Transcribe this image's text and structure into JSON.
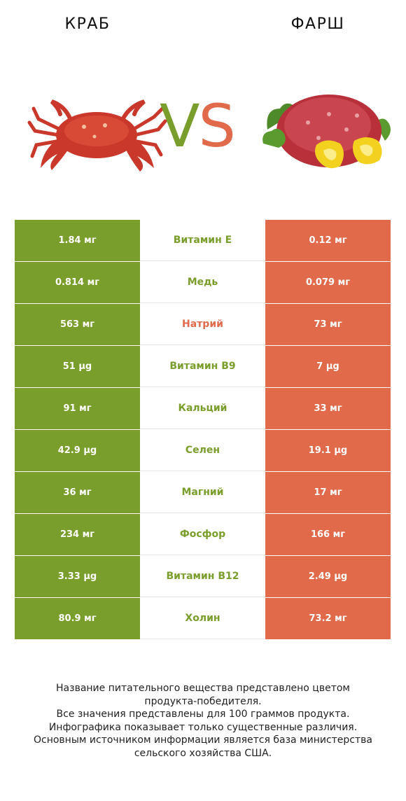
{
  "header": {
    "left_title": "КРАБ",
    "right_title": "ФАРШ"
  },
  "vs": {
    "v": "V",
    "s": "S"
  },
  "colors": {
    "green": "#7a9e2c",
    "red": "#e06a4a"
  },
  "rows": [
    {
      "left": "1.84 мг",
      "name": "Витамин E",
      "right": "0.12 мг",
      "winner": "green"
    },
    {
      "left": "0.814 мг",
      "name": "Медь",
      "right": "0.079 мг",
      "winner": "green"
    },
    {
      "left": "563 мг",
      "name": "Натрий",
      "right": "73 мг",
      "winner": "red"
    },
    {
      "left": "51 µg",
      "name": "Витамин B9",
      "right": "7 µg",
      "winner": "green"
    },
    {
      "left": "91 мг",
      "name": "Кальций",
      "right": "33 мг",
      "winner": "green"
    },
    {
      "left": "42.9 µg",
      "name": "Селен",
      "right": "19.1 µg",
      "winner": "green"
    },
    {
      "left": "36 мг",
      "name": "Магний",
      "right": "17 мг",
      "winner": "green"
    },
    {
      "left": "234 мг",
      "name": "Фосфор",
      "right": "166 мг",
      "winner": "green"
    },
    {
      "left": "3.33 µg",
      "name": "Витамин B12",
      "right": "2.49 µg",
      "winner": "green"
    },
    {
      "left": "80.9 мг",
      "name": "Холин",
      "right": "73.2 мг",
      "winner": "green"
    }
  ],
  "footer": {
    "lines": [
      "Название питательного вещества представлено цветом",
      "продукта-победителя.",
      "Все значения представлены для 100 граммов продукта.",
      "Инфографика показывает только существенные различия.",
      "Основным источником информации является база министерства",
      "сельского хозяйства США."
    ]
  }
}
